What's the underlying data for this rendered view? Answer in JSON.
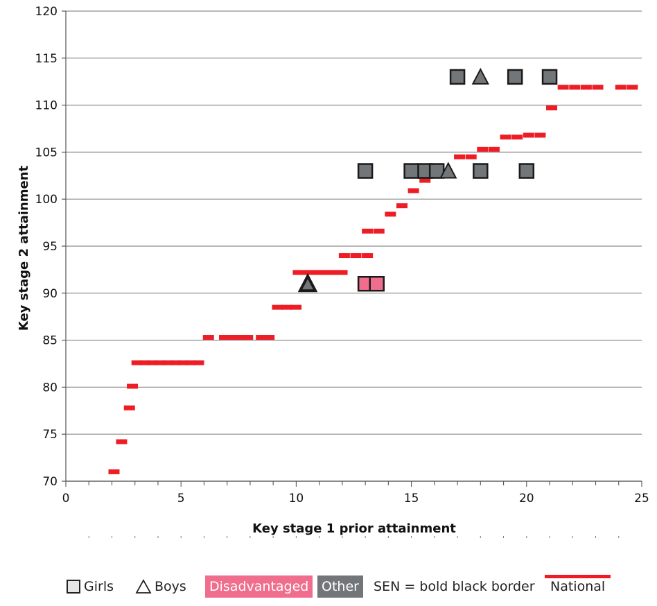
{
  "chart_data": {
    "type": "scatter",
    "title": "",
    "xlabel": "Key stage 1 prior attainment",
    "ylabel": "Key stage 2 attainment",
    "xlim": [
      0,
      25
    ],
    "ylim": [
      70,
      120
    ],
    "x_ticks": [
      0,
      5,
      10,
      15,
      20,
      25
    ],
    "y_ticks": [
      70,
      75,
      80,
      85,
      90,
      95,
      100,
      105,
      110,
      115,
      120
    ],
    "grid": "horizontal",
    "series": [
      {
        "name": "National",
        "style": "red dashes",
        "color": "#ee1c24",
        "points": [
          {
            "x": 2.0,
            "y": 71.0
          },
          {
            "x": 2.33,
            "y": 74.2
          },
          {
            "x": 2.67,
            "y": 77.8
          },
          {
            "x": 2.8,
            "y": 80.1
          },
          {
            "x": 3.0,
            "y": 82.6
          },
          {
            "x": 3.33,
            "y": 82.6
          },
          {
            "x": 3.67,
            "y": 82.6
          },
          {
            "x": 4.0,
            "y": 82.6
          },
          {
            "x": 4.33,
            "y": 82.6
          },
          {
            "x": 4.67,
            "y": 82.6
          },
          {
            "x": 5.0,
            "y": 82.6
          },
          {
            "x": 5.33,
            "y": 82.6
          },
          {
            "x": 5.67,
            "y": 82.6
          },
          {
            "x": 6.1,
            "y": 85.3
          },
          {
            "x": 6.8,
            "y": 85.3
          },
          {
            "x": 7.13,
            "y": 85.3
          },
          {
            "x": 7.47,
            "y": 85.3
          },
          {
            "x": 7.8,
            "y": 85.3
          },
          {
            "x": 8.4,
            "y": 85.3
          },
          {
            "x": 8.73,
            "y": 85.3
          },
          {
            "x": 9.1,
            "y": 88.5
          },
          {
            "x": 9.5,
            "y": 88.5
          },
          {
            "x": 9.9,
            "y": 88.5
          },
          {
            "x": 10.0,
            "y": 92.2
          },
          {
            "x": 10.45,
            "y": 92.2
          },
          {
            "x": 10.9,
            "y": 92.2
          },
          {
            "x": 11.23,
            "y": 92.2
          },
          {
            "x": 11.57,
            "y": 92.2
          },
          {
            "x": 11.9,
            "y": 92.2
          },
          {
            "x": 12.0,
            "y": 94.0
          },
          {
            "x": 12.5,
            "y": 94.0
          },
          {
            "x": 13.0,
            "y": 94.0
          },
          {
            "x": 13.0,
            "y": 96.6
          },
          {
            "x": 13.5,
            "y": 96.6
          },
          {
            "x": 14.0,
            "y": 98.4
          },
          {
            "x": 14.5,
            "y": 99.3
          },
          {
            "x": 15.0,
            "y": 100.9
          },
          {
            "x": 15.5,
            "y": 102.0
          },
          {
            "x": 16.0,
            "y": 103.3
          },
          {
            "x": 17.0,
            "y": 104.5
          },
          {
            "x": 17.5,
            "y": 104.5
          },
          {
            "x": 18.0,
            "y": 105.3
          },
          {
            "x": 18.5,
            "y": 105.3
          },
          {
            "x": 19.0,
            "y": 106.6
          },
          {
            "x": 19.5,
            "y": 106.6
          },
          {
            "x": 20.0,
            "y": 106.8
          },
          {
            "x": 20.5,
            "y": 106.8
          },
          {
            "x": 21.0,
            "y": 109.7
          },
          {
            "x": 21.5,
            "y": 111.9
          },
          {
            "x": 22.0,
            "y": 111.9
          },
          {
            "x": 22.5,
            "y": 111.9
          },
          {
            "x": 23.0,
            "y": 111.9
          },
          {
            "x": 24.0,
            "y": 111.9
          },
          {
            "x": 24.5,
            "y": 111.9
          }
        ]
      },
      {
        "name": "Girls",
        "marker": "square",
        "points": [
          {
            "x": 17.0,
            "y": 113,
            "group": "Other",
            "sen": false
          },
          {
            "x": 19.5,
            "y": 113,
            "group": "Other",
            "sen": false
          },
          {
            "x": 21.0,
            "y": 113,
            "group": "Other",
            "sen": false
          },
          {
            "x": 13.0,
            "y": 103,
            "group": "Other",
            "sen": false
          },
          {
            "x": 15.0,
            "y": 103,
            "group": "Other",
            "sen": false
          },
          {
            "x": 15.6,
            "y": 103,
            "group": "Other",
            "sen": false
          },
          {
            "x": 16.1,
            "y": 103,
            "group": "Other",
            "sen": false
          },
          {
            "x": 18.0,
            "y": 103,
            "group": "Other",
            "sen": false
          },
          {
            "x": 20.0,
            "y": 103,
            "group": "Other",
            "sen": false
          },
          {
            "x": 13.0,
            "y": 91,
            "group": "Disadvantaged",
            "sen": false
          },
          {
            "x": 13.5,
            "y": 91,
            "group": "Disadvantaged",
            "sen": false
          }
        ]
      },
      {
        "name": "Boys",
        "marker": "triangle",
        "points": [
          {
            "x": 18.0,
            "y": 113,
            "group": "Other",
            "sen": false
          },
          {
            "x": 16.6,
            "y": 103,
            "group": "Other",
            "sen": false
          },
          {
            "x": 10.5,
            "y": 91,
            "group": "Other",
            "sen": true
          }
        ]
      }
    ]
  },
  "legend": {
    "girls": "Girls",
    "boys": "Boys",
    "disadvantaged": "Disadvantaged",
    "other": "Other",
    "sen": "SEN = bold black border",
    "national": "National"
  },
  "colors": {
    "national": "#ee1c24",
    "other": "#737678",
    "disadvantaged": "#f06d8d",
    "grid": "#8c8c8c",
    "axis": "#555555"
  }
}
